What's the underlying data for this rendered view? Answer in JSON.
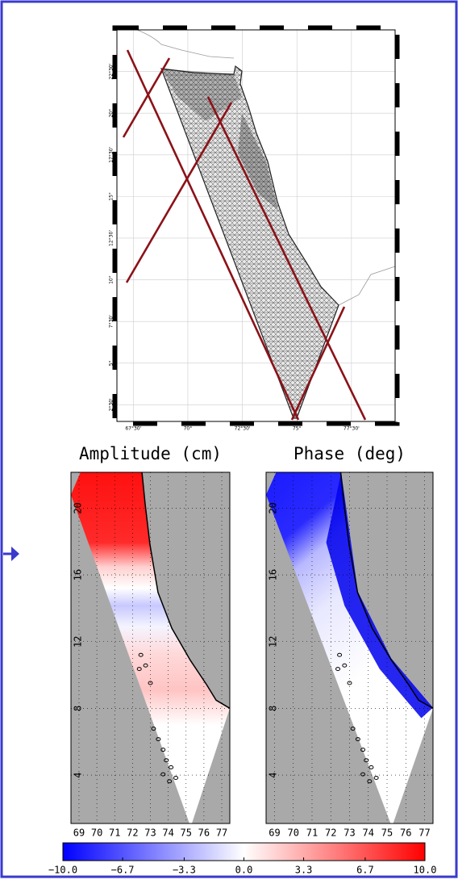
{
  "mesh_map": {
    "xlim": [
      66.75,
      79.5
    ],
    "ylim": [
      1.5,
      25
    ],
    "xticks": [
      {
        "value": 67.5,
        "label": "67°30'"
      },
      {
        "value": 70,
        "label": "70°"
      },
      {
        "value": 72.5,
        "label": "72°30'"
      },
      {
        "value": 75,
        "label": "75°"
      },
      {
        "value": 77.5,
        "label": "77°30'"
      }
    ],
    "yticks": [
      {
        "value": 2.5,
        "label": "2°30'"
      },
      {
        "value": 5,
        "label": "5°"
      },
      {
        "value": 7.5,
        "label": "7°30'"
      },
      {
        "value": 10,
        "label": "10°"
      },
      {
        "value": 12.5,
        "label": "12°30'"
      },
      {
        "value": 15,
        "label": "15°"
      },
      {
        "value": 17.5,
        "label": "17°30'"
      },
      {
        "value": 20,
        "label": "20°"
      },
      {
        "value": 22.5,
        "label": "22°30'"
      }
    ]
  },
  "panels": [
    {
      "title": "Amplitude (cm)",
      "xlim": [
        68.55,
        77.45
      ],
      "ylim": [
        1.1,
        22.15
      ],
      "xticks": [
        69,
        70,
        71,
        72,
        73,
        74,
        75,
        76,
        77
      ],
      "yticks": [
        4,
        8,
        12,
        16,
        20
      ]
    },
    {
      "title": "Phase (deg)",
      "xlim": [
        68.55,
        77.45
      ],
      "ylim": [
        1.1,
        22.15
      ],
      "xticks": [
        69,
        70,
        71,
        72,
        73,
        74,
        75,
        76,
        77
      ],
      "yticks": [
        4,
        8,
        12,
        16,
        20
      ]
    }
  ],
  "colorbar": {
    "range": [
      -10,
      10
    ],
    "ticks": [
      {
        "value": -10,
        "label": "−10.0"
      },
      {
        "value": -6.7,
        "label": "−6.7"
      },
      {
        "value": -3.3,
        "label": "−3.3"
      },
      {
        "value": 0,
        "label": "0.0"
      },
      {
        "value": 3.3,
        "label": "3.3"
      },
      {
        "value": 6.7,
        "label": "6.7"
      },
      {
        "value": 10,
        "label": "10.0"
      }
    ]
  }
}
